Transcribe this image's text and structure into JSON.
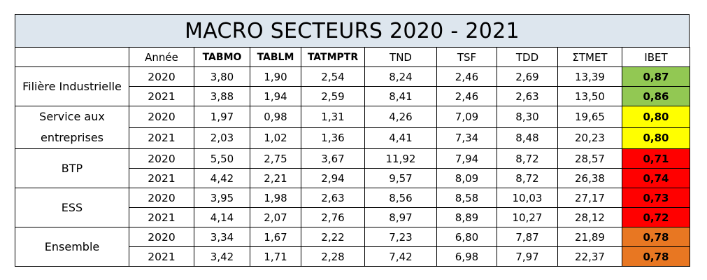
{
  "title": "MACRO SECTEURS 2020 - 2021",
  "headers": [
    "",
    "Année",
    "TABMO",
    "TABLM",
    "TATMPTR",
    "TND",
    "TSF",
    "TDD",
    "ΣTMET",
    "IBET"
  ],
  "sectors": [
    {
      "name": "Filière Industrielle",
      "ibet_color": "#92c853",
      "rows": [
        {
          "year": "2020",
          "tabmo": "3,80",
          "tablm": "1,90",
          "tatmptr": "2,54",
          "tnd": "8,24",
          "tsf": "2,46",
          "tdd": "2,69",
          "stmet": "13,39",
          "ibet": "0,87"
        },
        {
          "year": "2021",
          "tabmo": "3,88",
          "tablm": "1,94",
          "tatmptr": "2,59",
          "tnd": "8,41",
          "tsf": "2,46",
          "tdd": "2,63",
          "stmet": "13,50",
          "ibet": "0,86"
        }
      ]
    },
    {
      "name": "Service aux entreprises",
      "ibet_color": "#ffff00",
      "rows": [
        {
          "year": "2020",
          "tabmo": "1,97",
          "tablm": "0,98",
          "tatmptr": "1,31",
          "tnd": "4,26",
          "tsf": "7,09",
          "tdd": "8,30",
          "stmet": "19,65",
          "ibet": "0,80"
        },
        {
          "year": "2021",
          "tabmo": "2,03",
          "tablm": "1,02",
          "tatmptr": "1,36",
          "tnd": "4,41",
          "tsf": "7,34",
          "tdd": "8,48",
          "stmet": "20,23",
          "ibet": "0,80"
        }
      ]
    },
    {
      "name": "BTP",
      "ibet_color": "#ff0000",
      "rows": [
        {
          "year": "2020",
          "tabmo": "5,50",
          "tablm": "2,75",
          "tatmptr": "3,67",
          "tnd": "11,92",
          "tsf": "7,94",
          "tdd": "8,72",
          "stmet": "28,57",
          "ibet": "0,71"
        },
        {
          "year": "2021",
          "tabmo": "4,42",
          "tablm": "2,21",
          "tatmptr": "2,94",
          "tnd": "9,57",
          "tsf": "8,09",
          "tdd": "8,72",
          "stmet": "26,38",
          "ibet": "0,74"
        }
      ]
    },
    {
      "name": "ESS",
      "ibet_color": "#ff0000",
      "rows": [
        {
          "year": "2020",
          "tabmo": "3,95",
          "tablm": "1,98",
          "tatmptr": "2,63",
          "tnd": "8,56",
          "tsf": "8,58",
          "tdd": "10,03",
          "stmet": "27,17",
          "ibet": "0,73"
        },
        {
          "year": "2021",
          "tabmo": "4,14",
          "tablm": "2,07",
          "tatmptr": "2,76",
          "tnd": "8,97",
          "tsf": "8,89",
          "tdd": "10,27",
          "stmet": "28,12",
          "ibet": "0,72"
        }
      ]
    },
    {
      "name": "Ensemble",
      "ibet_color": "#e87722",
      "rows": [
        {
          "year": "2020",
          "tabmo": "3,34",
          "tablm": "1,67",
          "tatmptr": "2,22",
          "tnd": "7,23",
          "tsf": "6,80",
          "tdd": "7,87",
          "stmet": "21,89",
          "ibet": "0,78"
        },
        {
          "year": "2021",
          "tabmo": "3,42",
          "tablm": "1,71",
          "tatmptr": "2,28",
          "tnd": "7,42",
          "tsf": "6,98",
          "tdd": "7,97",
          "stmet": "22,37",
          "ibet": "0,78"
        }
      ]
    }
  ],
  "colors": {
    "title_background": "#dde6ee",
    "green": "#92c853",
    "yellow": "#ffff00",
    "red": "#ff0000",
    "orange": "#e87722"
  }
}
